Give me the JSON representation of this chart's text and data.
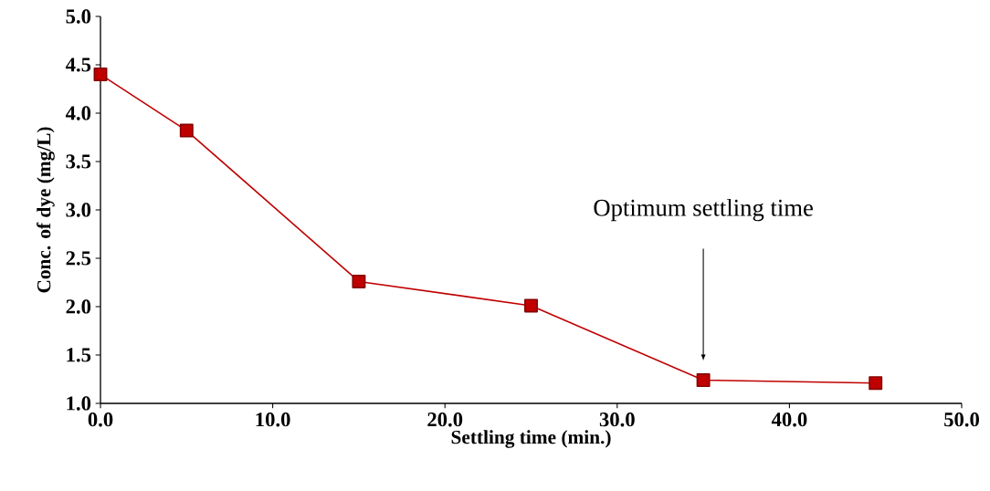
{
  "chart_data": {
    "type": "line",
    "xlabel": "Settling time (min.)",
    "ylabel": "Conc. of dye (mg/L)",
    "x": [
      0,
      5,
      15,
      25,
      35,
      45
    ],
    "series": [
      {
        "color": "#c00000",
        "values": [
          4.4,
          3.82,
          2.26,
          2.01,
          1.24,
          1.21
        ]
      }
    ],
    "xlim": [
      0,
      50
    ],
    "xticks": [
      {
        "value": 0,
        "label": "0.0"
      },
      {
        "value": 10,
        "label": "10.0"
      },
      {
        "value": 20,
        "label": "20.0"
      },
      {
        "value": 30,
        "label": "30.0"
      },
      {
        "value": 40,
        "label": "40.0"
      },
      {
        "value": 50,
        "label": "50.0"
      }
    ],
    "ylim": [
      1,
      5
    ],
    "yticks": [
      {
        "value": 1,
        "label": "1.0"
      },
      {
        "value": 1.5,
        "label": "1.5"
      },
      {
        "value": 2,
        "label": "2.0"
      },
      {
        "value": 2.5,
        "label": "2.5"
      },
      {
        "value": 3,
        "label": "3.0"
      },
      {
        "value": 3.5,
        "label": "3.5"
      },
      {
        "value": 4,
        "label": "4.0"
      },
      {
        "value": 4.5,
        "label": "4.5"
      },
      {
        "value": 5,
        "label": "5.0"
      }
    ],
    "marker": "square",
    "line_style": "solid",
    "grid": false,
    "annotations": [
      "Optimum settling time"
    ]
  }
}
